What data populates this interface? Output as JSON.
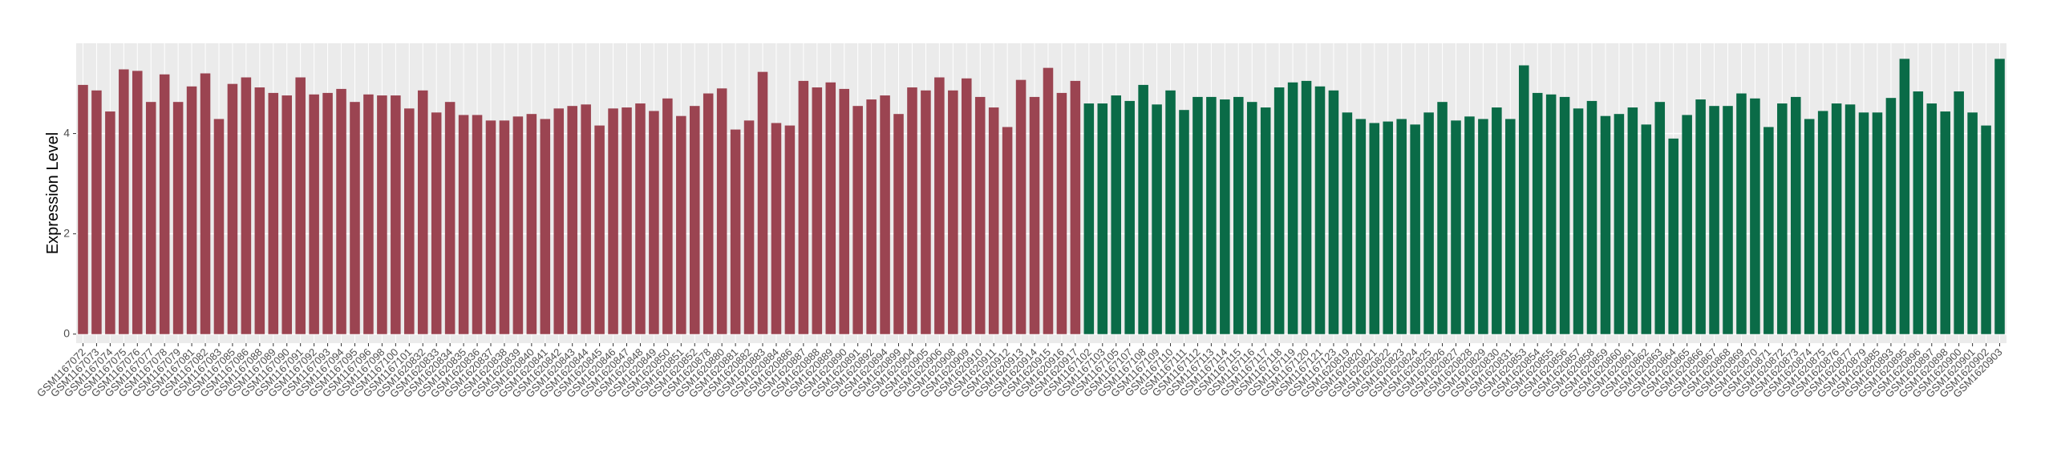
{
  "chart_data": {
    "type": "bar",
    "y_label": "Expression Level",
    "ylim": [
      -0.18,
      5.8
    ],
    "yticks": [
      0,
      2,
      4
    ],
    "grid": true,
    "groups": [
      {
        "color": "#9b4451",
        "categories": [
          "GSM1167072",
          "GSM1167073",
          "GSM1167074",
          "GSM1167075",
          "GSM1167076",
          "GSM1167077",
          "GSM1167078",
          "GSM1167079",
          "GSM1167081",
          "GSM1167082",
          "GSM1167083",
          "GSM1167085",
          "GSM1167086",
          "GSM1167088",
          "GSM1167089",
          "GSM1167090",
          "GSM1167091",
          "GSM1167092",
          "GSM1167093",
          "GSM1167094",
          "GSM1167095",
          "GSM1167096",
          "GSM1167098",
          "GSM1167100",
          "GSM1167101",
          "GSM1620832",
          "GSM1620833",
          "GSM1620834",
          "GSM1620835",
          "GSM1620836",
          "GSM1620837",
          "GSM1620838",
          "GSM1620839",
          "GSM1620840",
          "GSM1620841",
          "GSM1620842",
          "GSM1620843",
          "GSM1620844",
          "GSM1620845",
          "GSM1620846",
          "GSM1620847",
          "GSM1620848",
          "GSM1620849",
          "GSM1620850",
          "GSM1620851",
          "GSM1620852",
          "GSM1620878",
          "GSM1620880",
          "GSM1620881",
          "GSM1620882",
          "GSM1620883",
          "GSM1620884",
          "GSM1620886",
          "GSM1620887",
          "GSM1620888",
          "GSM1620889",
          "GSM1620890",
          "GSM1620891",
          "GSM1620892",
          "GSM1620894",
          "GSM1620899",
          "GSM1620904",
          "GSM1620905",
          "GSM1620906",
          "GSM1620908",
          "GSM1620909",
          "GSM1620910",
          "GSM1620911",
          "GSM1620912",
          "GSM1620913",
          "GSM1620914",
          "GSM1620915",
          "GSM1620916",
          "GSM1620917"
        ],
        "values": [
          4.97,
          4.86,
          4.44,
          5.28,
          5.25,
          4.63,
          5.18,
          4.63,
          4.94,
          5.2,
          4.29,
          4.99,
          5.12,
          4.92,
          4.81,
          4.76,
          5.12,
          4.78,
          4.81,
          4.89,
          4.63,
          4.78,
          4.76,
          4.76,
          4.5,
          4.86,
          4.42,
          4.63,
          4.37,
          4.37,
          4.26,
          4.26,
          4.34,
          4.39,
          4.29,
          4.5,
          4.55,
          4.58,
          4.16,
          4.5,
          4.52,
          4.6,
          4.45,
          4.7,
          4.35,
          4.55,
          4.8,
          4.9,
          4.08,
          4.26,
          5.23,
          4.21,
          4.16,
          5.05,
          4.92,
          5.02,
          4.89,
          4.55,
          4.68,
          4.76,
          4.39,
          4.92,
          4.86,
          5.12,
          4.86,
          5.1,
          4.73,
          4.52,
          4.13,
          5.07,
          4.73,
          5.31,
          4.81,
          5.05
        ]
      },
      {
        "color": "#0a6b47",
        "categories": [
          "GSM1167102",
          "GSM1167103",
          "GSM1167105",
          "GSM1167107",
          "GSM1167108",
          "GSM1167109",
          "GSM1167110",
          "GSM1167111",
          "GSM1167112",
          "GSM1167113",
          "GSM1167114",
          "GSM1167115",
          "GSM1167116",
          "GSM1167117",
          "GSM1167118",
          "GSM1167119",
          "GSM1167120",
          "GSM1167121",
          "GSM1167123",
          "GSM1620819",
          "GSM1620820",
          "GSM1620821",
          "GSM1620822",
          "GSM1620823",
          "GSM1620824",
          "GSM1620825",
          "GSM1620826",
          "GSM1620827",
          "GSM1620828",
          "GSM1620829",
          "GSM1620830",
          "GSM1620831",
          "GSM1620853",
          "GSM1620854",
          "GSM1620855",
          "GSM1620856",
          "GSM1620857",
          "GSM1620858",
          "GSM1620859",
          "GSM1620860",
          "GSM1620861",
          "GSM1620862",
          "GSM1620863",
          "GSM1620864",
          "GSM1620865",
          "GSM1620866",
          "GSM1620867",
          "GSM1620868",
          "GSM1620869",
          "GSM1620870",
          "GSM1620871",
          "GSM1620872",
          "GSM1620873",
          "GSM1620874",
          "GSM1620875",
          "GSM1620876",
          "GSM1620877",
          "GSM1620879",
          "GSM1620885",
          "GSM1620893",
          "GSM1620895",
          "GSM1620896",
          "GSM1620897",
          "GSM1620898",
          "GSM1620900",
          "GSM1620901",
          "GSM1620902",
          "GSM1620903"
        ],
        "values": [
          4.6,
          4.6,
          4.76,
          4.65,
          4.97,
          4.58,
          4.86,
          4.47,
          4.73,
          4.73,
          4.68,
          4.73,
          4.63,
          4.52,
          4.92,
          5.02,
          5.05,
          4.94,
          4.86,
          4.42,
          4.29,
          4.21,
          4.24,
          4.29,
          4.18,
          4.42,
          4.63,
          4.26,
          4.34,
          4.29,
          4.52,
          4.29,
          5.36,
          4.81,
          4.78,
          4.73,
          4.5,
          4.65,
          4.35,
          4.39,
          4.52,
          4.18,
          4.63,
          3.9,
          4.37,
          4.68,
          4.55,
          4.55,
          4.8,
          4.7,
          4.13,
          4.6,
          4.73,
          4.29,
          4.45,
          4.6,
          4.58,
          4.42,
          4.42,
          4.71,
          5.49,
          4.84,
          4.6,
          4.44,
          4.84,
          4.42,
          4.16,
          5.49
        ]
      }
    ]
  }
}
